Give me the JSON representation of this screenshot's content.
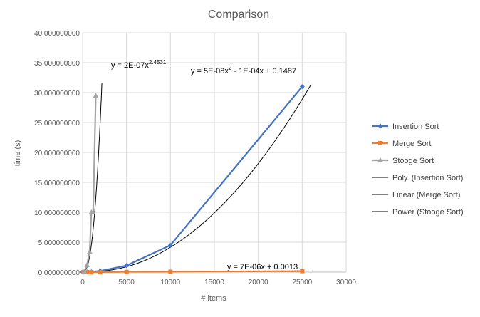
{
  "chart_data": {
    "type": "scatter",
    "title": "Comparison",
    "xlabel": "# items",
    "ylabel": "time (s)",
    "xlim": [
      0,
      30000
    ],
    "ylim": [
      0,
      40
    ],
    "x_ticks": [
      0,
      5000,
      10000,
      15000,
      20000,
      25000,
      30000
    ],
    "x_tick_labels": [
      "0",
      "5000",
      "10000",
      "15000",
      "20000",
      "25000",
      "30000"
    ],
    "y_ticks": [
      0,
      5,
      10,
      15,
      20,
      25,
      30,
      35,
      40
    ],
    "y_tick_labels": [
      "0.000000000",
      "5.000000000",
      "10.000000000",
      "15.000000000",
      "20.000000000",
      "25.000000000",
      "30.000000000",
      "35.000000000",
      "40.000000000"
    ],
    "grid": {
      "x": true,
      "y": true
    },
    "legend_position": "right",
    "series": [
      {
        "name": "Insertion Sort",
        "color": "#4472c4",
        "marker": "diamond",
        "x": [
          0,
          100,
          500,
          1000,
          2000,
          5000,
          10000,
          25000
        ],
        "y": [
          0,
          0.0,
          0.01,
          0.05,
          0.2,
          1.1,
          4.5,
          31.0
        ]
      },
      {
        "name": "Merge Sort",
        "color": "#ed7d31",
        "marker": "square",
        "x": [
          100,
          500,
          1000,
          2000,
          5000,
          10000,
          25000
        ],
        "y": [
          0.0,
          0.0,
          0.0,
          0.01,
          0.03,
          0.06,
          0.17
        ]
      },
      {
        "name": "Stooge Sort",
        "color": "#a5a5a5",
        "marker": "triangle",
        "x": [
          100,
          200,
          500,
          800,
          1000,
          1200,
          1500
        ],
        "y": [
          0.0,
          0.05,
          1.2,
          3.4,
          10.0,
          10.0,
          29.5
        ]
      }
    ],
    "trendlines": [
      {
        "name": "Poly. (Insertion Sort)",
        "type": "polynomial",
        "coefficients": [
          5e-08,
          -0.0001,
          0.1487
        ],
        "x_range": [
          2000,
          26000
        ],
        "equation_main": "y = 5E-08x",
        "equation_sup": "2",
        "equation_rest": " - 1E-04x + 0.1487"
      },
      {
        "name": "Linear (Merge Sort)",
        "type": "linear",
        "coefficients": [
          7e-06,
          0.0013
        ],
        "x_range": [
          0,
          26000
        ],
        "equation_main": "y = 7E-06x + 0.0013",
        "equation_sup": "",
        "equation_rest": ""
      },
      {
        "name": "Power (Stooge Sort)",
        "type": "power",
        "coefficients": [
          2e-07,
          2.4531
        ],
        "x_range": [
          100,
          2200
        ],
        "equation_main": "y = 2E-07x",
        "equation_sup": "2.4531",
        "equation_rest": ""
      }
    ]
  }
}
